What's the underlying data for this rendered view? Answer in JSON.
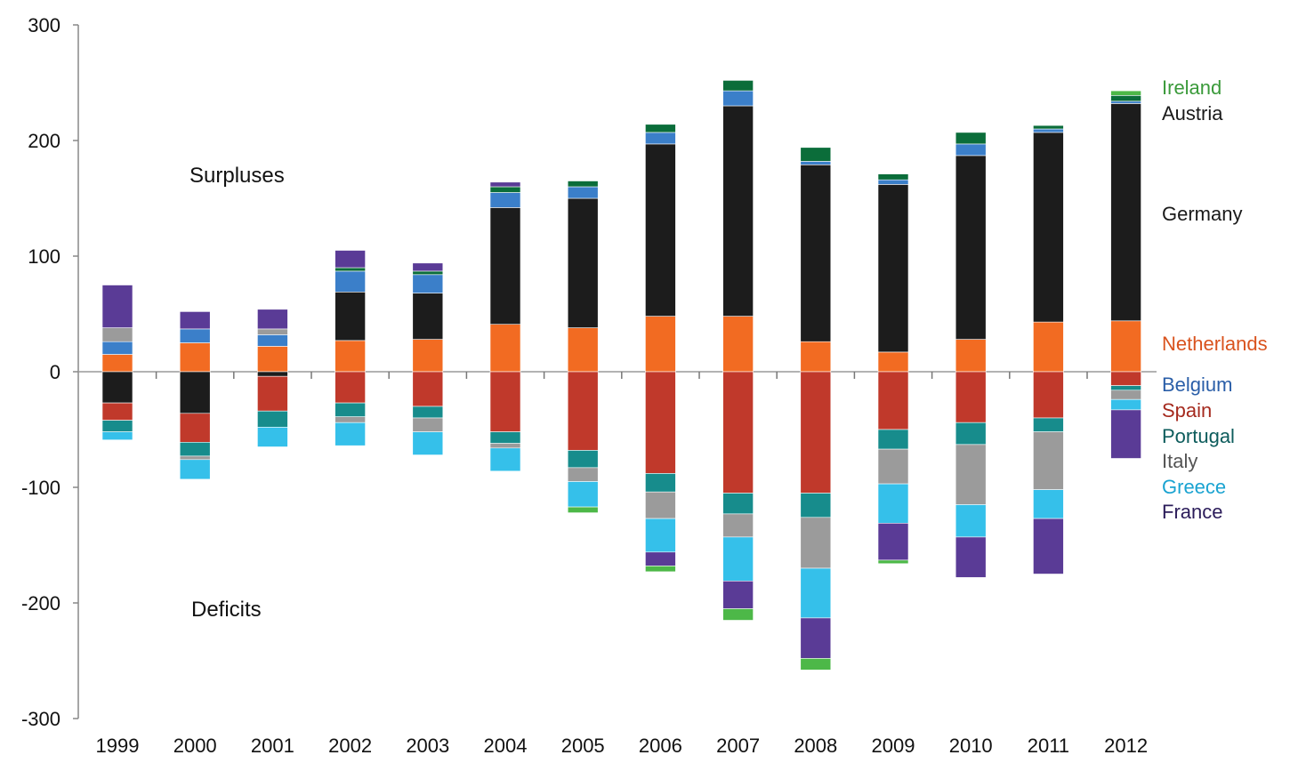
{
  "chart_data": {
    "type": "bar",
    "stacked": true,
    "categories": [
      "1999",
      "2000",
      "2001",
      "2002",
      "2003",
      "2004",
      "2005",
      "2006",
      "2007",
      "2008",
      "2009",
      "2010",
      "2011",
      "2012"
    ],
    "ylim": [
      -300,
      300
    ],
    "yticks": [
      "300",
      "200",
      "100",
      "0",
      "-100",
      "-200",
      "-300"
    ],
    "ytick_values": [
      300,
      200,
      100,
      0,
      -100,
      -200,
      -300
    ],
    "annotations": {
      "surpluses": "Surpluses",
      "deficits": "Deficits"
    },
    "grid": false,
    "legend_placement": "right",
    "series": [
      {
        "name": "Netherlands",
        "color": "#f26b22",
        "values": [
          15,
          25,
          22,
          27,
          28,
          41,
          38,
          48,
          48,
          26,
          17,
          28,
          43,
          44
        ]
      },
      {
        "name": "Germany",
        "color": "#1c1c1c",
        "values": [
          -27,
          -36,
          -4,
          42,
          40,
          101,
          112,
          149,
          182,
          153,
          145,
          159,
          164,
          188
        ]
      },
      {
        "name": "Belgium",
        "color": "#3b7fc9",
        "values": [
          11,
          12,
          10,
          18,
          16,
          13,
          10,
          10,
          13,
          3,
          4,
          10,
          3,
          2
        ]
      },
      {
        "name": "Austria",
        "color": "#0b6d3a",
        "values": [
          0,
          0,
          0,
          3,
          3,
          5,
          5,
          7,
          9,
          12,
          5,
          10,
          3,
          5
        ]
      },
      {
        "name": "Ireland",
        "color": "#4db848",
        "values": [
          0,
          0,
          0,
          0,
          0,
          0,
          0,
          0,
          0,
          0,
          0,
          0,
          0,
          4
        ]
      },
      {
        "name": "Spain",
        "color": "#c0392b",
        "values": [
          -15,
          -25,
          -30,
          -27,
          -30,
          -52,
          -68,
          -88,
          -105,
          -105,
          -50,
          -44,
          -40,
          -12
        ]
      },
      {
        "name": "Portugal",
        "color": "#178c8c",
        "values": [
          -10,
          -12,
          -14,
          -12,
          -10,
          -10,
          -15,
          -16,
          -18,
          -21,
          -17,
          -19,
          -12,
          -4
        ]
      },
      {
        "name": "Italy",
        "color": "#9b9b9b",
        "values": [
          12,
          -3,
          5,
          -5,
          -12,
          -4,
          -12,
          -23,
          -20,
          -44,
          -30,
          -52,
          -50,
          -8
        ]
      },
      {
        "name": "Greece",
        "color": "#35c0ea",
        "values": [
          -7,
          -17,
          -17,
          -20,
          -20,
          -20,
          -22,
          -29,
          -38,
          -43,
          -34,
          -28,
          -25,
          -9
        ]
      },
      {
        "name": "France",
        "color": "#5a3b96",
        "values": [
          37,
          15,
          17,
          15,
          7,
          4,
          0,
          -12,
          -24,
          -35,
          -32,
          -35,
          -48,
          -42
        ]
      },
      {
        "name": "Ireland",
        "color": "#4db848",
        "values": [
          0,
          0,
          0,
          0,
          0,
          0,
          -5,
          -5,
          -10,
          -10,
          -3,
          0,
          0,
          0
        ]
      }
    ],
    "legend": [
      {
        "label": "Ireland",
        "color": "#3a9a3a"
      },
      {
        "label": "Austria",
        "color": "#1a1a1a"
      },
      {
        "label": "Germany",
        "color": "#1a1a1a"
      },
      {
        "label": "Netherlands",
        "color": "#d9531e"
      },
      {
        "label": "Belgium",
        "color": "#2a5ea8"
      },
      {
        "label": "Spain",
        "color": "#a52a1e"
      },
      {
        "label": "Portugal",
        "color": "#0d5c5c"
      },
      {
        "label": "Italy",
        "color": "#555555"
      },
      {
        "label": "Greece",
        "color": "#1aa3d1"
      },
      {
        "label": "France",
        "color": "#2b1c5a"
      }
    ]
  }
}
